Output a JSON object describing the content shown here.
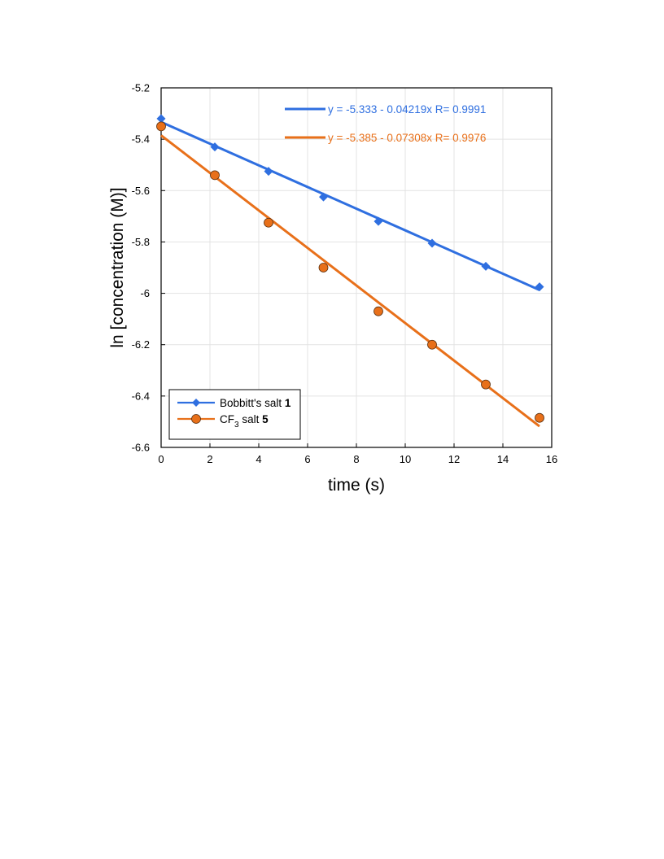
{
  "chart_data": {
    "type": "scatter",
    "xlabel": "time (s)",
    "ylabel": "ln [concentration (M)]",
    "xlim": [
      0,
      16
    ],
    "ylim": [
      -6.6,
      -5.2
    ],
    "x_ticks": [
      "0",
      "2",
      "4",
      "6",
      "8",
      "10",
      "12",
      "14",
      "16"
    ],
    "y_ticks": [
      "-5.2",
      "-5.4",
      "-5.6",
      "-5.8",
      "-6",
      "-6.2",
      "-6.4",
      "-6.6"
    ],
    "grid": true,
    "legend_position": "bottom-left",
    "series": [
      {
        "name": "Bobbitt's salt 1",
        "legend_main": "Bobbitt's salt ",
        "legend_bold": "1",
        "marker": "diamond",
        "color": "#2F6FE0",
        "points": [
          {
            "x": 0.0,
            "y": -5.32
          },
          {
            "x": 2.2,
            "y": -5.43
          },
          {
            "x": 4.4,
            "y": -5.525
          },
          {
            "x": 6.65,
            "y": -5.625
          },
          {
            "x": 8.9,
            "y": -5.72
          },
          {
            "x": 11.1,
            "y": -5.805
          },
          {
            "x": 13.3,
            "y": -5.895
          },
          {
            "x": 15.5,
            "y": -5.975
          }
        ],
        "fit": {
          "equation": "y = -5.333 - 0.04219x   R= 0.9991",
          "intercept": -5.333,
          "slope": -0.04219,
          "x_range": [
            0,
            15.5
          ]
        }
      },
      {
        "name": "CF3 salt 5",
        "legend_main": "CF",
        "legend_sub": "3",
        "legend_rest": " salt ",
        "legend_bold": "5",
        "marker": "circle",
        "color": "#E8701A",
        "points": [
          {
            "x": 0.0,
            "y": -5.35
          },
          {
            "x": 2.2,
            "y": -5.54
          },
          {
            "x": 4.4,
            "y": -5.725
          },
          {
            "x": 6.65,
            "y": -5.9
          },
          {
            "x": 8.9,
            "y": -6.07
          },
          {
            "x": 11.1,
            "y": -6.2
          },
          {
            "x": 13.3,
            "y": -6.355
          },
          {
            "x": 15.5,
            "y": -6.485
          }
        ],
        "fit": {
          "equation": "y = -5.385 - 0.07308x   R= 0.9976",
          "intercept": -5.385,
          "slope": -0.07308,
          "x_range": [
            0,
            15.5
          ]
        }
      }
    ]
  }
}
